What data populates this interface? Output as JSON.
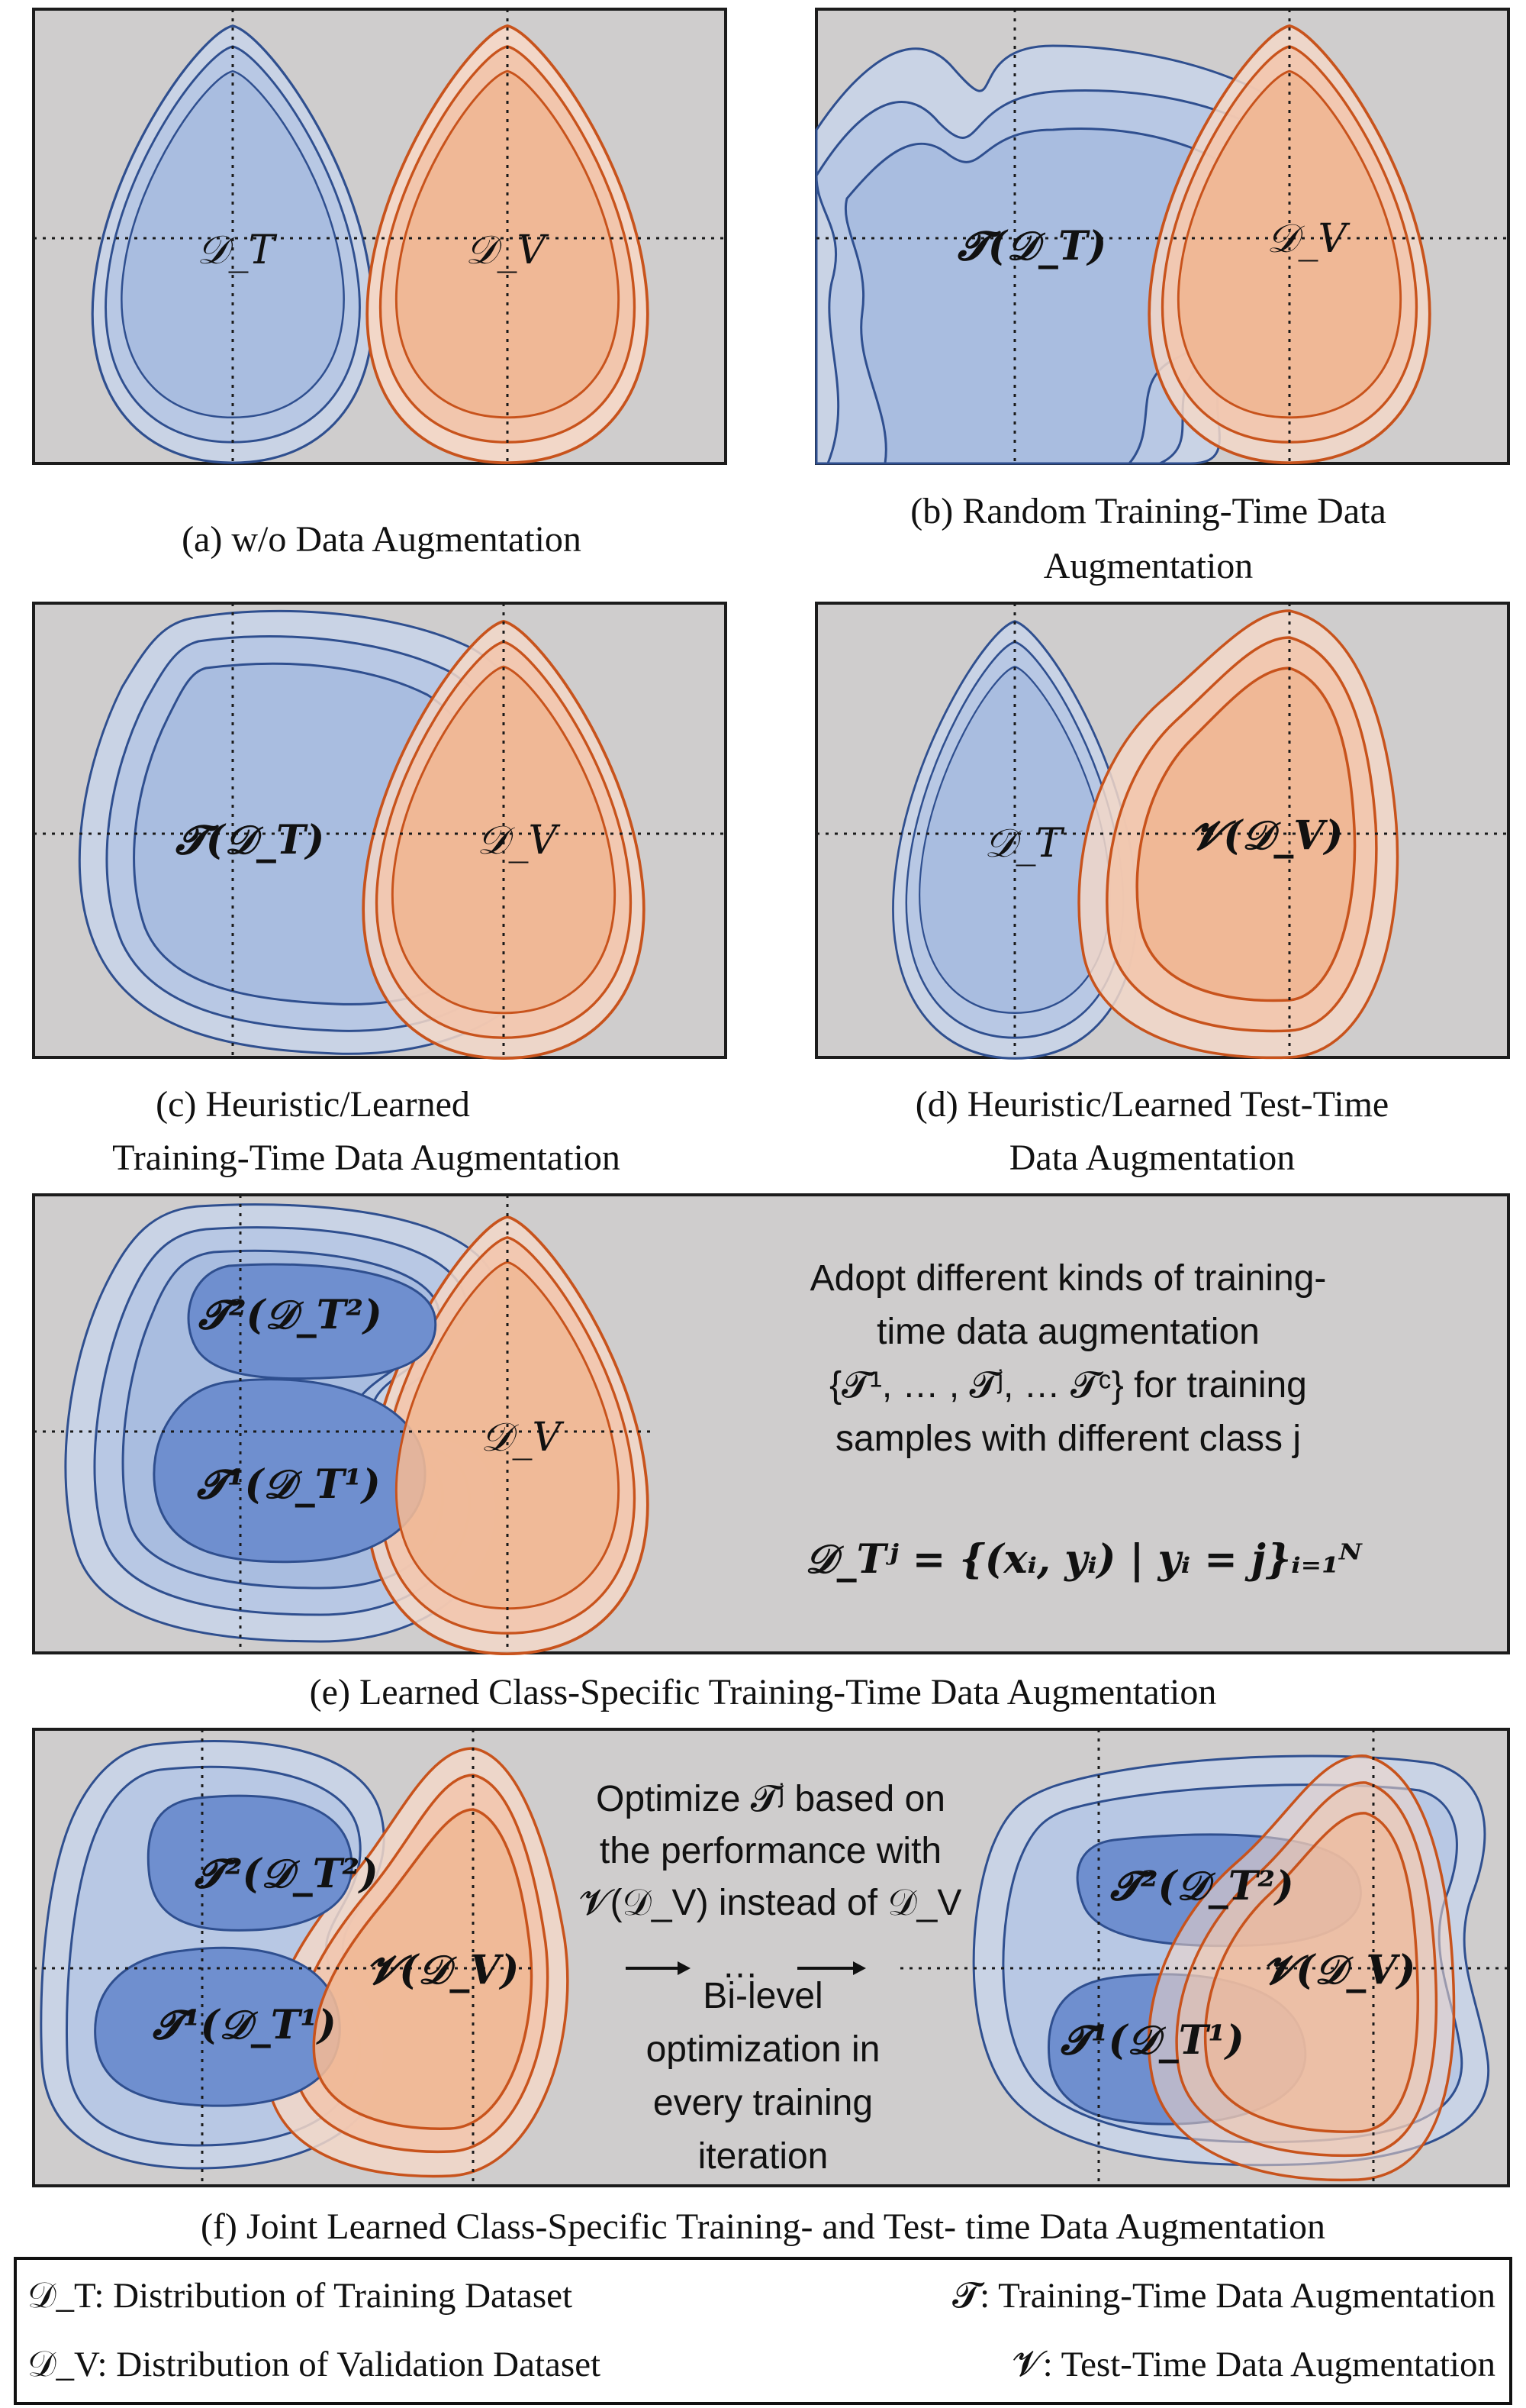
{
  "captions": {
    "a": "(a) w/o Data Augmentation",
    "b_line1": "(b) Random Training-Time Data",
    "b_line2": "Augmentation",
    "c_line1": "(c) Heuristic/Learned",
    "c_line2": "Training-Time Data Augmentation",
    "d_line1": "(d) Heuristic/Learned Test-Time",
    "d_line2": "Data Augmentation",
    "e": "(e) Learned Class-Specific Training-Time Data Augmentation",
    "f": "(f) Joint Learned Class-Specific Training- and Test- time Data Augmentation"
  },
  "symbols": {
    "d_t": "𝒟_T",
    "d_v": "𝒟_V",
    "t_d_t": "𝓣(𝒟_T)",
    "v_d_v": "𝓥(𝒟_V)",
    "t1_label": "𝓣¹(𝒟_T¹)",
    "t2_label": "𝓣²(𝒟_T²)"
  },
  "panel_e_text": {
    "line1": "Adopt different kinds of training-",
    "line2": "time data augmentation",
    "line3": "{𝓣¹, … , 𝓣ʲ, … 𝓣ᶜ} for training",
    "line4": "samples with different class j",
    "formula": "𝒟_Tʲ = {(xᵢ, yᵢ) | yᵢ = j}ᵢ₌₁ᴺ"
  },
  "panel_f_text": {
    "line1": "Optimize 𝓣ʲ based on",
    "line2": "the performance with",
    "line3": "𝓥(𝒟_V) instead of 𝒟_V",
    "ellipsis": "…",
    "line4": "Bi-level",
    "line5": "optimization in",
    "line6": "every training",
    "line7": "iteration"
  },
  "legend": {
    "d_t": "𝒟_T: Distribution of Training Dataset",
    "d_v": "𝒟_V: Distribution of Validation Dataset",
    "t": "𝓣: Training-Time Data Augmentation",
    "v": "𝓥: Test-Time Data Augmentation"
  },
  "colors": {
    "background_panel": "#cfcdcd",
    "blue_light": "#c9d3e5",
    "blue_mid": "#a9bde0",
    "blue_dark": "#6f8fcf",
    "orange_light": "#f2d7c8",
    "orange_mid": "#f0b896",
    "orange_outline": "#c8531c",
    "blue_outline": "#2f4f8f"
  }
}
